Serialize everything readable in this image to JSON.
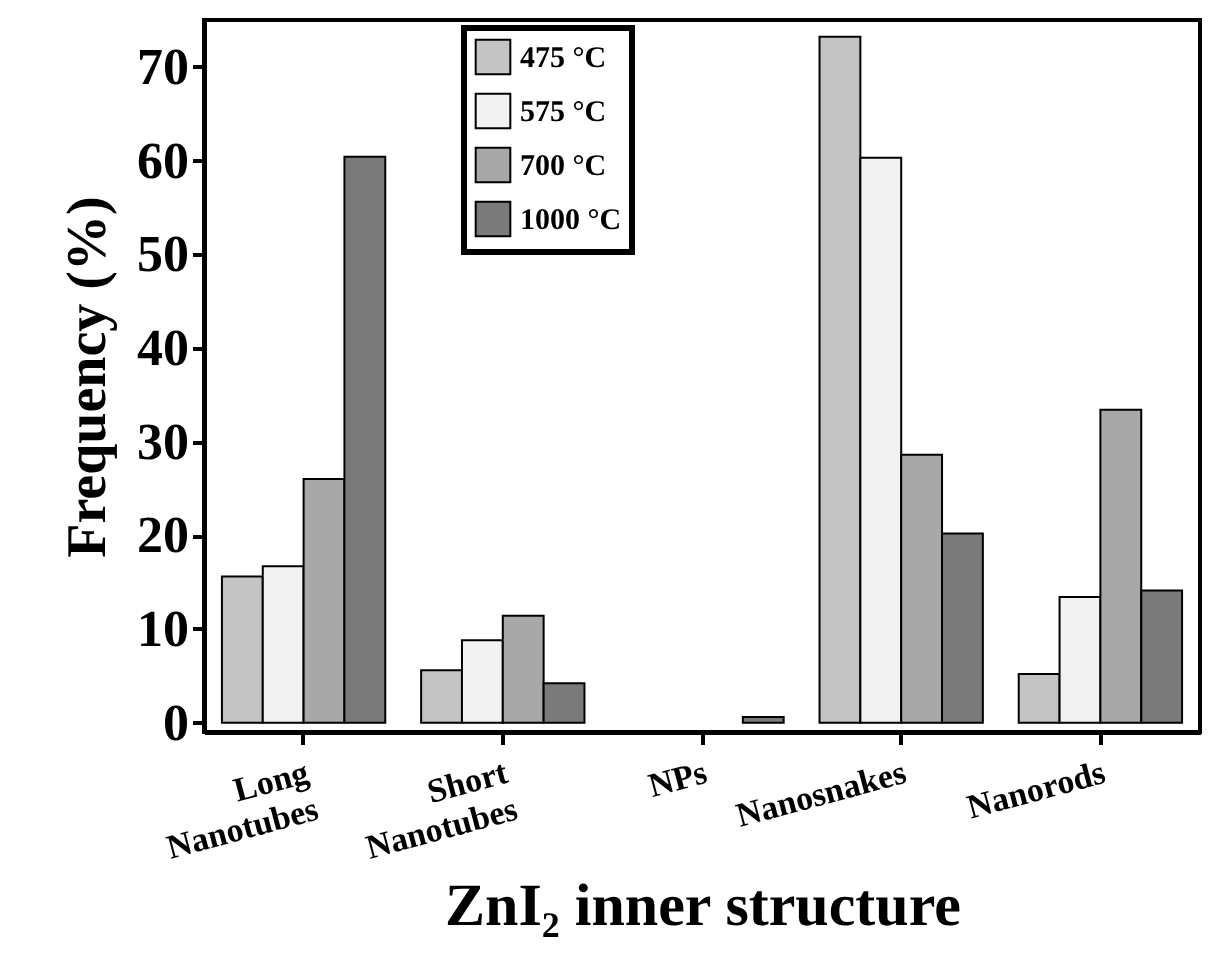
{
  "chart_data": {
    "type": "bar",
    "xlabel": "ZnI₂ inner structure",
    "ylabel": "Frequency (%)",
    "categories": [
      "Long Nanotubes",
      "Short Nanotubes",
      "NPs",
      "Nanosnakes",
      "Nanorods"
    ],
    "series": [
      {
        "name": "475 °C",
        "color": "#c4c4c4",
        "values": [
          15.6,
          5.6,
          null,
          73.2,
          5.2
        ]
      },
      {
        "name": "575 °C",
        "color": "#f2f2f2",
        "values": [
          16.7,
          8.8,
          null,
          60.3,
          13.4
        ]
      },
      {
        "name": "700 °C",
        "color": "#a8a8a8",
        "values": [
          26.0,
          11.4,
          null,
          28.6,
          33.4
        ]
      },
      {
        "name": "1000 °C",
        "color": "#7a7a7a",
        "values": [
          60.4,
          4.2,
          0.6,
          20.2,
          14.1
        ]
      }
    ],
    "ylim": [
      -1,
      75
    ],
    "yticks": [
      0,
      10,
      20,
      30,
      40,
      50,
      60,
      70
    ],
    "legend": "top",
    "grid": false
  }
}
